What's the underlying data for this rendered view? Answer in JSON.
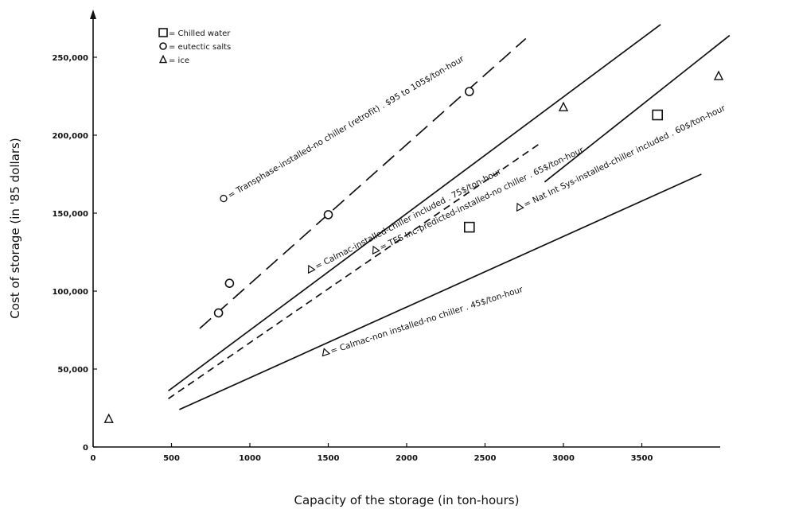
{
  "chart_data": {
    "type": "scatter",
    "xlabel": "Capacity of the storage (in ton-hours)",
    "ylabel": "Cost of storage (in '85 dollars)",
    "xlim": [
      0,
      4000
    ],
    "ylim": [
      0,
      250000
    ],
    "x_ticks": [
      0,
      500,
      1000,
      1500,
      2000,
      2500,
      3000,
      3500
    ],
    "x_tick_labels": [
      "0",
      "500",
      "1000",
      "1500",
      "2000",
      "2500",
      "3000",
      "3500"
    ],
    "y_ticks": [
      0,
      50000,
      100000,
      150000,
      200000,
      250000
    ],
    "y_tick_labels": [
      "0",
      "50,000",
      "100,000",
      "150,000",
      "200,000",
      "250,000"
    ],
    "grid": false,
    "legend": [
      {
        "marker": "square",
        "label": "= Chilled water"
      },
      {
        "marker": "circle",
        "label": "= eutectic salts"
      },
      {
        "marker": "triangle",
        "label": "= ice"
      }
    ],
    "lines": [
      {
        "label": "= Transphase-installed-no chiller (retrofit) . $95 to 105$/ton-hour",
        "marker": "circle",
        "dash": "long",
        "points": [
          [
            680,
            76000
          ],
          [
            2760,
            262000
          ]
        ]
      },
      {
        "label": "= Calmac-installed-chiller included . 75$/ton-hour",
        "marker": "triangle",
        "dash": "solid",
        "points": [
          [
            480,
            36000
          ],
          [
            3620,
            271000
          ]
        ]
      },
      {
        "label": "= TES Inc-predicted-installed-no chiller . 65$/ton-hour",
        "marker": "triangle",
        "dash": "short",
        "points": [
          [
            480,
            31000
          ],
          [
            2840,
            194000
          ]
        ]
      },
      {
        "label": "= Nat Int Sys-installed-chiller included . 60$/ton-hour",
        "marker": "triangle",
        "dash": "solid",
        "points": [
          [
            2880,
            170000
          ],
          [
            4060,
            264000
          ]
        ]
      },
      {
        "label": "= Calmac-non installed-no chiller . 45$/ton-hour",
        "marker": "triangle",
        "dash": "solid",
        "points": [
          [
            550,
            24000
          ],
          [
            3880,
            175000
          ]
        ]
      }
    ],
    "points": [
      {
        "marker": "square",
        "x": 2400,
        "y": 141000
      },
      {
        "marker": "square",
        "x": 3600,
        "y": 213000
      },
      {
        "marker": "circle",
        "x": 800,
        "y": 86000
      },
      {
        "marker": "circle",
        "x": 870,
        "y": 105000
      },
      {
        "marker": "circle",
        "x": 1500,
        "y": 149000
      },
      {
        "marker": "circle",
        "x": 2400,
        "y": 228000
      },
      {
        "marker": "triangle",
        "x": 100,
        "y": 18000
      },
      {
        "marker": "triangle",
        "x": 3000,
        "y": 218000
      },
      {
        "marker": "triangle",
        "x": 3990,
        "y": 238000
      }
    ]
  }
}
